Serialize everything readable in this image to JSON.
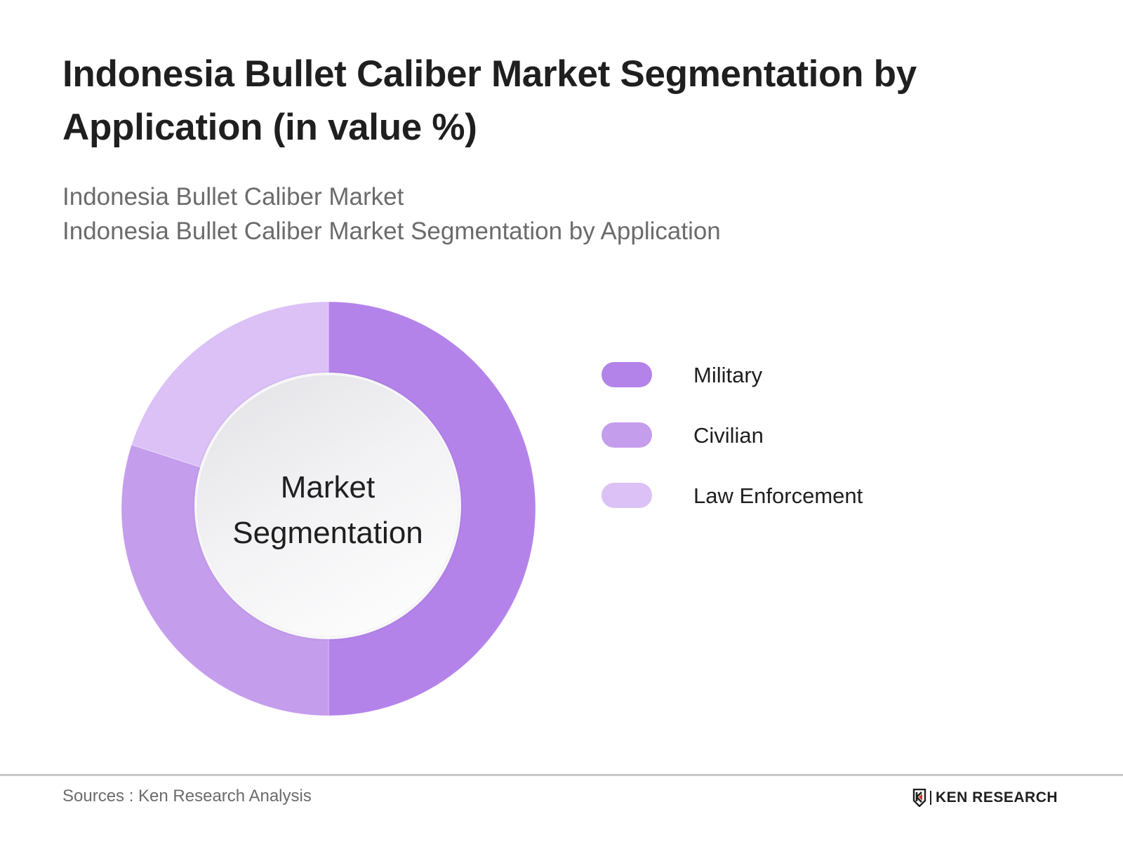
{
  "header": {
    "title": "Indonesia Bullet Caliber Market Segmentation by Application (in value %)",
    "subtitle_line1": "Indonesia Bullet Caliber Market",
    "subtitle_line2": "Indonesia Bullet Caliber Market Segmentation by Application"
  },
  "donut": {
    "center_line1": "Market",
    "center_line2": "Segmentation"
  },
  "legend": {
    "items": [
      {
        "label": "Military",
        "color": "#b483ea"
      },
      {
        "label": "Civilian",
        "color": "#c59ded"
      },
      {
        "label": "Law Enforcement",
        "color": "#dbc1f6"
      }
    ]
  },
  "footer": {
    "sources": "Sources : Ken Research Analysis",
    "logo_text": "KEN RESEARCH",
    "logo_accent_color": "#d0312d"
  },
  "chart_data": {
    "type": "pie",
    "subtype": "donut",
    "title": "Indonesia Bullet Caliber Market Segmentation by Application (in value %)",
    "subtitle": "Indonesia Bullet Caliber Market Segmentation by Application",
    "center_label": "Market Segmentation",
    "categories": [
      "Military",
      "Civilian",
      "Law Enforcement"
    ],
    "values": [
      50,
      30,
      20
    ],
    "colors": [
      "#b483ea",
      "#c59ded",
      "#dbc1f6"
    ],
    "start_angle_deg": 0,
    "direction": "clockwise",
    "legend_position": "right",
    "data_labels_shown": false
  }
}
